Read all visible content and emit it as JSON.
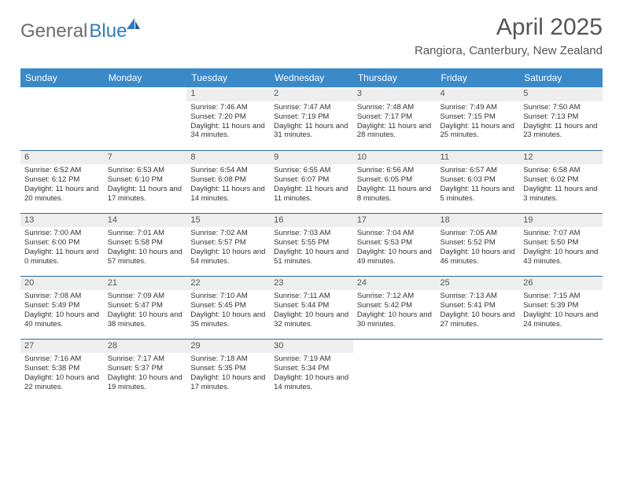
{
  "logo": {
    "part1": "General",
    "part2": "Blue"
  },
  "title": "April 2025",
  "location": "Rangiora, Canterbury, New Zealand",
  "weekdays": [
    "Sunday",
    "Monday",
    "Tuesday",
    "Wednesday",
    "Thursday",
    "Friday",
    "Saturday"
  ],
  "header_bg": "#3a89c9",
  "header_fg": "#ffffff",
  "rule_color": "#2c6ca3",
  "dayhead_bg": "#eeeeee",
  "weeks": [
    [
      null,
      null,
      {
        "n": "1",
        "sr": "7:46 AM",
        "ss": "7:20 PM",
        "dl": "11 hours and 34 minutes."
      },
      {
        "n": "2",
        "sr": "7:47 AM",
        "ss": "7:19 PM",
        "dl": "11 hours and 31 minutes."
      },
      {
        "n": "3",
        "sr": "7:48 AM",
        "ss": "7:17 PM",
        "dl": "11 hours and 28 minutes."
      },
      {
        "n": "4",
        "sr": "7:49 AM",
        "ss": "7:15 PM",
        "dl": "11 hours and 25 minutes."
      },
      {
        "n": "5",
        "sr": "7:50 AM",
        "ss": "7:13 PM",
        "dl": "11 hours and 23 minutes."
      }
    ],
    [
      {
        "n": "6",
        "sr": "6:52 AM",
        "ss": "6:12 PM",
        "dl": "11 hours and 20 minutes."
      },
      {
        "n": "7",
        "sr": "6:53 AM",
        "ss": "6:10 PM",
        "dl": "11 hours and 17 minutes."
      },
      {
        "n": "8",
        "sr": "6:54 AM",
        "ss": "6:08 PM",
        "dl": "11 hours and 14 minutes."
      },
      {
        "n": "9",
        "sr": "6:55 AM",
        "ss": "6:07 PM",
        "dl": "11 hours and 11 minutes."
      },
      {
        "n": "10",
        "sr": "6:56 AM",
        "ss": "6:05 PM",
        "dl": "11 hours and 8 minutes."
      },
      {
        "n": "11",
        "sr": "6:57 AM",
        "ss": "6:03 PM",
        "dl": "11 hours and 5 minutes."
      },
      {
        "n": "12",
        "sr": "6:58 AM",
        "ss": "6:02 PM",
        "dl": "11 hours and 3 minutes."
      }
    ],
    [
      {
        "n": "13",
        "sr": "7:00 AM",
        "ss": "6:00 PM",
        "dl": "11 hours and 0 minutes."
      },
      {
        "n": "14",
        "sr": "7:01 AM",
        "ss": "5:58 PM",
        "dl": "10 hours and 57 minutes."
      },
      {
        "n": "15",
        "sr": "7:02 AM",
        "ss": "5:57 PM",
        "dl": "10 hours and 54 minutes."
      },
      {
        "n": "16",
        "sr": "7:03 AM",
        "ss": "5:55 PM",
        "dl": "10 hours and 51 minutes."
      },
      {
        "n": "17",
        "sr": "7:04 AM",
        "ss": "5:53 PM",
        "dl": "10 hours and 49 minutes."
      },
      {
        "n": "18",
        "sr": "7:05 AM",
        "ss": "5:52 PM",
        "dl": "10 hours and 46 minutes."
      },
      {
        "n": "19",
        "sr": "7:07 AM",
        "ss": "5:50 PM",
        "dl": "10 hours and 43 minutes."
      }
    ],
    [
      {
        "n": "20",
        "sr": "7:08 AM",
        "ss": "5:49 PM",
        "dl": "10 hours and 40 minutes."
      },
      {
        "n": "21",
        "sr": "7:09 AM",
        "ss": "5:47 PM",
        "dl": "10 hours and 38 minutes."
      },
      {
        "n": "22",
        "sr": "7:10 AM",
        "ss": "5:45 PM",
        "dl": "10 hours and 35 minutes."
      },
      {
        "n": "23",
        "sr": "7:11 AM",
        "ss": "5:44 PM",
        "dl": "10 hours and 32 minutes."
      },
      {
        "n": "24",
        "sr": "7:12 AM",
        "ss": "5:42 PM",
        "dl": "10 hours and 30 minutes."
      },
      {
        "n": "25",
        "sr": "7:13 AM",
        "ss": "5:41 PM",
        "dl": "10 hours and 27 minutes."
      },
      {
        "n": "26",
        "sr": "7:15 AM",
        "ss": "5:39 PM",
        "dl": "10 hours and 24 minutes."
      }
    ],
    [
      {
        "n": "27",
        "sr": "7:16 AM",
        "ss": "5:38 PM",
        "dl": "10 hours and 22 minutes."
      },
      {
        "n": "28",
        "sr": "7:17 AM",
        "ss": "5:37 PM",
        "dl": "10 hours and 19 minutes."
      },
      {
        "n": "29",
        "sr": "7:18 AM",
        "ss": "5:35 PM",
        "dl": "10 hours and 17 minutes."
      },
      {
        "n": "30",
        "sr": "7:19 AM",
        "ss": "5:34 PM",
        "dl": "10 hours and 14 minutes."
      },
      null,
      null,
      null
    ]
  ],
  "labels": {
    "sunrise": "Sunrise: ",
    "sunset": "Sunset: ",
    "daylight": "Daylight: "
  }
}
